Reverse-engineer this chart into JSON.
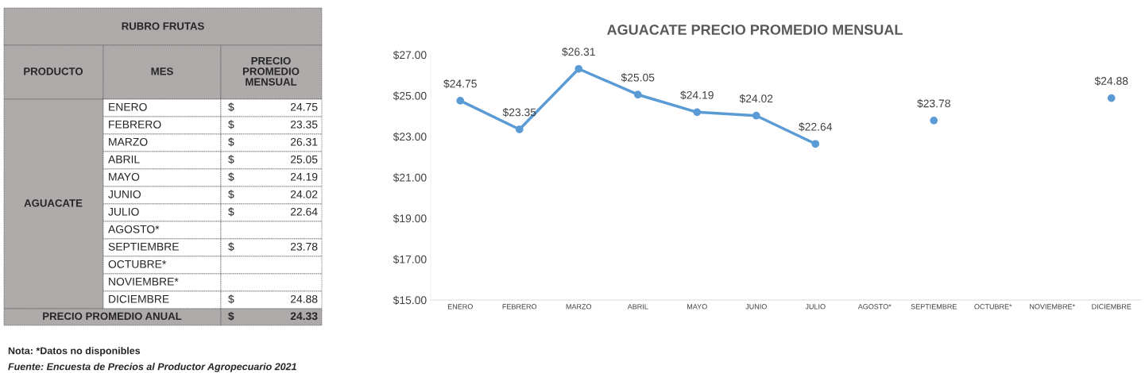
{
  "chart_data": {
    "type": "line",
    "title": "AGUACATE PRECIO PROMEDIO MENSUAL",
    "categories": [
      "ENERO",
      "FEBRERO",
      "MARZO",
      "ABRIL",
      "MAYO",
      "JUNIO",
      "JULIO",
      "AGOSTO*",
      "SEPTIEMBRE",
      "OCTUBRE*",
      "NOVIEMBRE*",
      "DICIEMBRE"
    ],
    "series": [
      {
        "color": "#5b9bd5",
        "values": [
          24.75,
          23.35,
          26.31,
          25.05,
          24.19,
          24.02,
          22.64,
          null,
          23.78,
          null,
          null,
          24.88
        ],
        "value_labels": [
          "$24.75",
          "$23.35",
          "$26.31",
          "$25.05",
          "$24.19",
          "$24.02",
          "$22.64",
          null,
          "$23.78",
          null,
          null,
          "$24.88"
        ]
      }
    ],
    "ylim": [
      15,
      27
    ],
    "yticks": [
      {
        "value": 15,
        "label": "$15.00"
      },
      {
        "value": 17,
        "label": "$17.00"
      },
      {
        "value": 19,
        "label": "$19.00"
      },
      {
        "value": 21,
        "label": "$21.00"
      },
      {
        "value": 23,
        "label": "$23.00"
      },
      {
        "value": 25,
        "label": "$25.00"
      },
      {
        "value": 27,
        "label": "$27.00"
      }
    ],
    "marker": "circle",
    "line_style": "solid",
    "grid": false,
    "legend": false,
    "annotations": [
      "RUBRO FRUTAS",
      "PRODUCTO",
      "MES",
      "PRECIO\nPROMEDIO\nMENSUAL",
      "AGUACATE",
      "PRECIO PROMEDIO ANUAL",
      "$",
      "24.33",
      "Nota: *Datos no disponibles",
      "Fuente: Encuesta de Precios al Productor Agropecuario 2021"
    ]
  }
}
